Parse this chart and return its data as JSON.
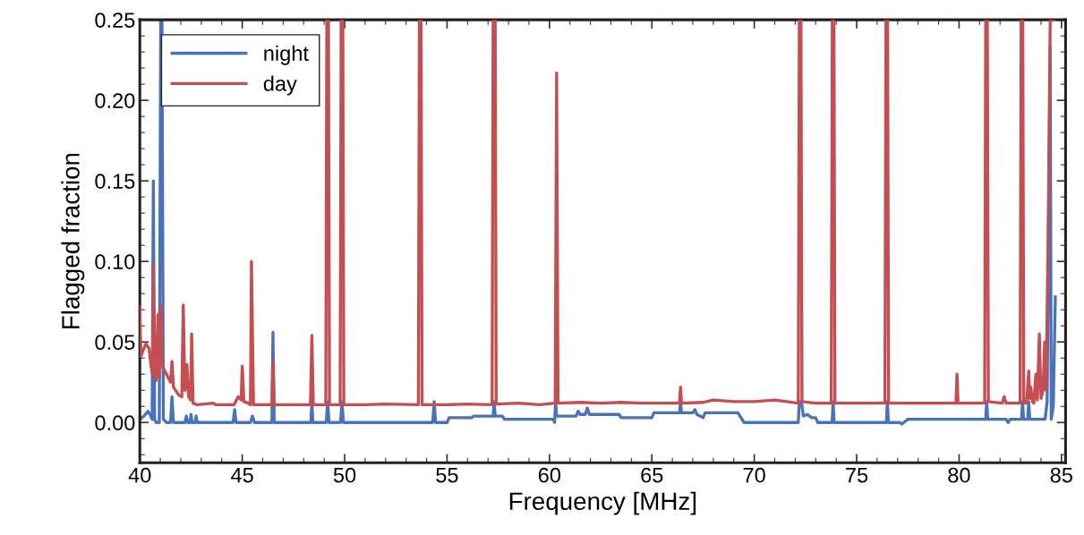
{
  "chart_data": {
    "type": "line",
    "xlabel": "Frequency [MHz]",
    "ylabel": "Flagged fraction",
    "xlim": [
      40,
      85.2
    ],
    "xticks": [
      40,
      45,
      50,
      55,
      60,
      65,
      70,
      75,
      80,
      85
    ],
    "ylim": [
      -0.025,
      0.25
    ],
    "yticks": [
      {
        "value": 0,
        "label": "0.00"
      },
      {
        "value": 0.05,
        "label": "0.05"
      },
      {
        "value": 0.1,
        "label": "0.10"
      },
      {
        "value": 0.15,
        "label": "0.15"
      },
      {
        "value": 0.2,
        "label": "0.20"
      },
      {
        "value": 0.25,
        "label": "0.25"
      }
    ],
    "grid": false,
    "legend": "top left",
    "marker": "none",
    "line_style": "solid",
    "series": [
      {
        "name": "night",
        "color": "#4a72b8",
        "x": [
          40.0,
          40.2,
          40.4,
          40.5,
          40.6,
          40.66,
          40.72,
          40.8,
          40.95,
          41.02,
          41.08,
          41.15,
          41.3,
          41.5,
          41.57,
          41.64,
          42.2,
          42.27,
          42.34,
          42.45,
          42.5,
          42.55,
          42.7,
          42.75,
          42.8,
          44.55,
          44.63,
          44.7,
          45.4,
          45.5,
          45.6,
          46.45,
          46.5,
          46.56,
          48.35,
          48.4,
          48.45,
          49.1,
          49.17,
          49.24,
          49.8,
          49.87,
          49.94,
          54.3,
          54.37,
          54.44,
          55.0,
          55.1,
          56.2,
          56.3,
          57.25,
          57.3,
          57.35,
          57.7,
          57.8,
          60.2,
          60.25,
          60.3,
          60.35,
          61.3,
          61.4,
          61.5,
          61.75,
          61.85,
          61.95,
          63.4,
          63.5,
          65.0,
          65.1,
          66.35,
          66.4,
          66.45,
          67.0,
          67.1,
          67.2,
          67.5,
          67.6,
          69.2,
          69.5,
          72.15,
          72.2,
          72.3,
          72.4,
          72.6,
          72.8,
          73.0,
          73.1,
          73.8,
          73.85,
          73.9,
          76.45,
          76.5,
          76.55,
          77.1,
          77.2,
          77.4,
          77.5,
          81.3,
          81.35,
          81.4,
          82.3,
          82.4,
          82.5,
          83.05,
          83.1,
          83.15,
          83.35,
          83.4,
          83.45,
          84.2,
          84.3,
          84.45,
          84.5,
          84.6,
          84.7
        ],
        "values": [
          0.002,
          0.004,
          0.007,
          0.005,
          0.002,
          0.15,
          0.002,
          0.0,
          0.0,
          0.25,
          0.25,
          0.002,
          0.0,
          0.0,
          0.016,
          0.0,
          0.0,
          0.004,
          0.0,
          0.0,
          0.005,
          0.0,
          0.0,
          0.004,
          0.0,
          0.0,
          0.008,
          0.0,
          0.0,
          0.004,
          0.0,
          0.0,
          0.056,
          0.0,
          0.0,
          0.013,
          0.0,
          0.0,
          0.013,
          0.0,
          0.0,
          0.013,
          0.0,
          0.0,
          0.013,
          0.0,
          0.0,
          0.003,
          0.003,
          0.004,
          0.004,
          0.013,
          0.004,
          0.004,
          0.002,
          0.002,
          0.0,
          0.013,
          0.004,
          0.004,
          0.007,
          0.005,
          0.005,
          0.009,
          0.005,
          0.005,
          0.003,
          0.003,
          0.006,
          0.006,
          0.013,
          0.006,
          0.006,
          0.008,
          0.005,
          0.003,
          0.006,
          0.006,
          0.0,
          0.0,
          0.013,
          0.013,
          0.004,
          0.005,
          0.003,
          0.003,
          0.0,
          0.0,
          0.013,
          0.0,
          0.0,
          0.013,
          0.0,
          0.0,
          -0.001,
          0.001,
          0.002,
          0.002,
          0.013,
          0.002,
          0.002,
          0.0,
          0.002,
          0.002,
          0.013,
          0.002,
          0.002,
          0.013,
          0.002,
          0.002,
          0.013,
          0.234,
          0.002,
          0.01,
          0.078
        ]
      },
      {
        "name": "day",
        "color": "#c44e52",
        "x": [
          40.0,
          40.05,
          40.2,
          40.3,
          40.45,
          40.55,
          40.62,
          40.66,
          40.72,
          40.8,
          40.88,
          40.95,
          41.02,
          41.1,
          41.3,
          41.5,
          41.57,
          41.64,
          41.9,
          42.05,
          42.12,
          42.2,
          42.3,
          42.38,
          42.48,
          42.53,
          42.6,
          42.8,
          43.6,
          43.7,
          44.6,
          44.8,
          44.95,
          45.0,
          45.08,
          45.3,
          45.4,
          45.45,
          45.55,
          46.45,
          46.5,
          46.56,
          48.33,
          48.4,
          48.47,
          49.08,
          49.13,
          49.21,
          49.26,
          49.78,
          49.83,
          49.91,
          49.96,
          51.0,
          52.0,
          53.6,
          53.65,
          53.73,
          53.78,
          55.0,
          56.0,
          57.2,
          57.25,
          57.35,
          57.4,
          58.5,
          59.5,
          60.28,
          60.35,
          60.42,
          61.5,
          62.5,
          63.5,
          64.5,
          66.35,
          66.4,
          66.45,
          67.5,
          68.0,
          69.0,
          70.0,
          71.0,
          72.15,
          72.2,
          72.28,
          72.33,
          73.0,
          73.76,
          73.81,
          73.89,
          73.94,
          75.0,
          76.38,
          76.43,
          76.51,
          76.56,
          78.0,
          79.0,
          79.85,
          79.9,
          79.95,
          81.25,
          81.3,
          81.38,
          81.43,
          82.1,
          82.2,
          82.3,
          82.98,
          83.03,
          83.11,
          83.16,
          83.3,
          83.4,
          83.45,
          83.5,
          83.58,
          83.65,
          83.75,
          83.82,
          83.92,
          84.0,
          84.1,
          84.18,
          84.25,
          84.35,
          84.45,
          84.6,
          84.65
        ],
        "values": [
          0.072,
          0.041,
          0.046,
          0.049,
          0.046,
          0.035,
          0.03,
          0.099,
          0.03,
          0.026,
          0.067,
          0.028,
          0.073,
          0.035,
          0.03,
          0.025,
          0.038,
          0.022,
          0.017,
          0.016,
          0.073,
          0.02,
          0.036,
          0.016,
          0.014,
          0.055,
          0.012,
          0.011,
          0.012,
          0.011,
          0.011,
          0.016,
          0.014,
          0.035,
          0.013,
          0.012,
          0.011,
          0.1,
          0.011,
          0.011,
          0.038,
          0.011,
          0.011,
          0.054,
          0.011,
          0.011,
          0.25,
          0.25,
          0.011,
          0.011,
          0.25,
          0.25,
          0.011,
          0.011,
          0.0115,
          0.011,
          0.25,
          0.25,
          0.011,
          0.011,
          0.0115,
          0.011,
          0.25,
          0.25,
          0.0115,
          0.012,
          0.011,
          0.012,
          0.217,
          0.012,
          0.0125,
          0.012,
          0.0125,
          0.012,
          0.012,
          0.022,
          0.012,
          0.0125,
          0.014,
          0.013,
          0.013,
          0.014,
          0.012,
          0.25,
          0.25,
          0.013,
          0.012,
          0.012,
          0.25,
          0.25,
          0.012,
          0.012,
          0.012,
          0.25,
          0.25,
          0.012,
          0.012,
          0.012,
          0.012,
          0.03,
          0.012,
          0.012,
          0.25,
          0.25,
          0.013,
          0.012,
          0.016,
          0.012,
          0.012,
          0.25,
          0.25,
          0.012,
          0.012,
          0.032,
          0.015,
          0.022,
          0.013,
          0.012,
          0.03,
          0.014,
          0.055,
          0.015,
          0.02,
          0.05,
          0.02,
          0.117,
          0.25,
          0.25,
          0.25
        ]
      }
    ]
  }
}
